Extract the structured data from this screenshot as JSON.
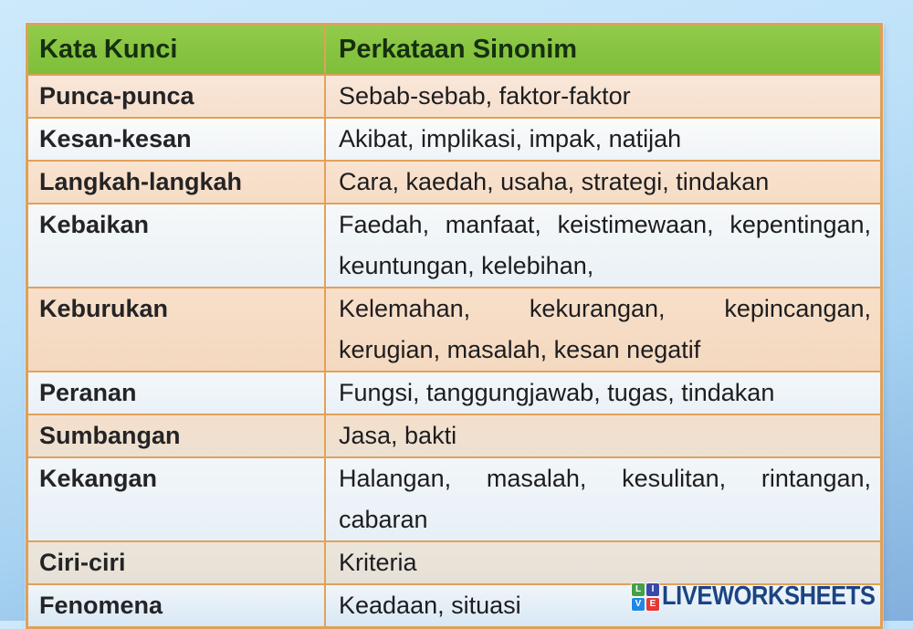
{
  "table": {
    "header": {
      "keyword_label": "Kata Kunci",
      "synonym_label": "Perkataan Sinonim",
      "background_color": "#86c440",
      "text_color": "#16300e"
    },
    "border_color": "#e2a159",
    "row_tint_odd": "#f8e3d2",
    "row_tint_even": "#eef4f7",
    "rows": [
      {
        "key": "Punca-punca",
        "synonyms": "Sebab-sebab, faktor-faktor"
      },
      {
        "key": "Kesan-kesan",
        "synonyms": "Akibat, implikasi, impak, natijah"
      },
      {
        "key": "Langkah-langkah",
        "synonyms": "Cara, kaedah, usaha, strategi, tindakan"
      },
      {
        "key": "Kebaikan",
        "synonyms": "Faedah, manfaat, keistimewaan, kepentingan, keuntungan, kelebihan,"
      },
      {
        "key": "Keburukan",
        "synonyms": "Kelemahan, kekurangan, kepincangan, kerugian, masalah, kesan negatif"
      },
      {
        "key": "Peranan",
        "synonyms": "Fungsi, tanggungjawab, tugas, tindakan"
      },
      {
        "key": "Sumbangan",
        "synonyms": "Jasa, bakti"
      },
      {
        "key": "Kekangan",
        "synonyms": "Halangan, masalah, kesulitan, rintangan, cabaran"
      },
      {
        "key": "Ciri-ciri",
        "synonyms": "Kriteria"
      },
      {
        "key": "Fenomena",
        "synonyms": "Keadaan, situasi"
      }
    ]
  },
  "watermark": {
    "brand": "LIVEWORKSHEETS",
    "grid_letters": {
      "tl": "L",
      "tr": "I",
      "bl": "V",
      "br": "E"
    },
    "grid_colors": {
      "L": "#43a047",
      "I": "#3949ab",
      "V": "#1e88e5",
      "E": "#e53935"
    },
    "text_color": "#1b4484"
  }
}
